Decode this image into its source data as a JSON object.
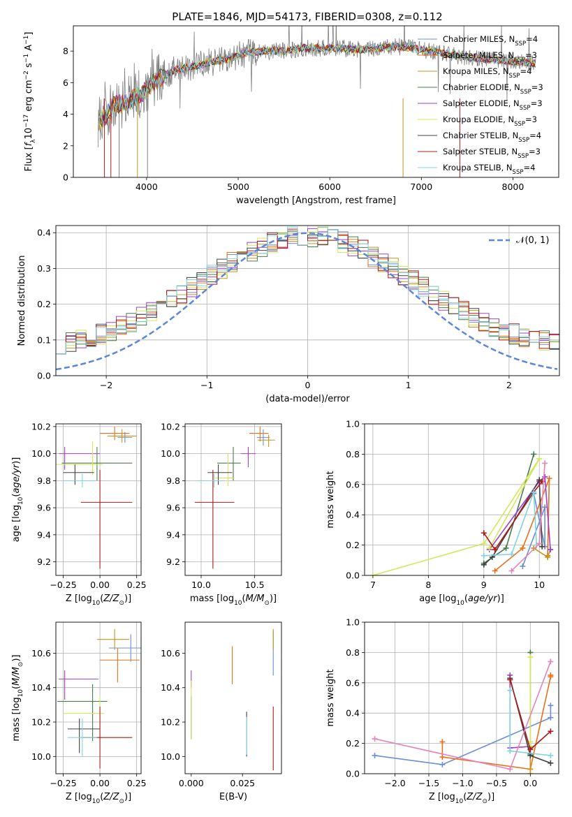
{
  "page_title": "PLATE=1846, MJD=54173, FIBERID=0308, z=0.112",
  "palette": {
    "chabrier_miles": "#6b8fd6",
    "salpeter_miles": "#e8701a",
    "kroupa_miles": "#c7941c",
    "chabrier_elodie": "#4a7a4e",
    "salpeter_elodie": "#a340c9",
    "kroupa_elodie": "#d3e85a",
    "chabrier_stelib": "#404040",
    "salpeter_stelib": "#b01818",
    "kroupa_stelib": "#7fd4e0",
    "data_gray": "#7f7f7f",
    "pink": "#e584b8",
    "normal_curve": "#5b86d9"
  },
  "chart_data": [
    {
      "id": "spectrum",
      "type": "line",
      "title": "PLATE=1846, MJD=54173, FIBERID=0308, z=0.112",
      "xlabel": "wavelength [Angstrom, rest frame]",
      "ylabel": "Flux [f_λ10^{-17} erg cm^{-2} s^{-1} A^{-1}]",
      "xlim": [
        3200,
        8500
      ],
      "ylim": [
        0,
        9.6
      ],
      "xticks": [
        "4000",
        "5000",
        "6000",
        "7000",
        "8000"
      ],
      "yticks": [
        "0",
        "2",
        "4",
        "6",
        "8"
      ],
      "legend_position": "upper right",
      "legend": [
        "Chabrier MILES, N_SSP=4",
        "Salpeter MILES, N_SSP=3",
        "Kroupa MILES, N_SSP=4",
        "Chabrier ELODIE, N_SSP=3",
        "Salpeter ELODIE, N_SSP=3",
        "Kroupa ELODIE, N_SSP=3",
        "Chabrier STELIB, N_SSP=4",
        "Salpeter STELIB, N_SSP=3",
        "Kroupa STELIB, N_SSP=4"
      ],
      "continuum": {
        "x": [
          3470,
          3550,
          3650,
          3750,
          3850,
          3950,
          4050,
          4150,
          4300,
          4500,
          4700,
          4900,
          5100,
          5300,
          5500,
          5700,
          5900,
          6100,
          6300,
          6500,
          6700,
          6900,
          7100,
          7300,
          7500,
          7700,
          7900,
          8100,
          8250
        ],
        "y": [
          3.5,
          3.9,
          4.6,
          4.7,
          5.0,
          5.3,
          5.9,
          6.3,
          6.8,
          7.0,
          7.3,
          7.5,
          7.9,
          8.0,
          8.0,
          8.2,
          8.2,
          8.2,
          8.1,
          8.2,
          8.3,
          8.2,
          8.0,
          7.8,
          7.6,
          7.5,
          7.4,
          7.3,
          7.2
        ]
      }
    },
    {
      "id": "residuals",
      "type": "histogram",
      "xlabel": "(data-model)/error",
      "ylabel": "Normed distribution",
      "xlim": [
        -2.5,
        2.5
      ],
      "ylim": [
        0,
        0.42
      ],
      "xticks": [
        "−2",
        "−1",
        "0",
        "1",
        "2"
      ],
      "yticks": [
        "0.0",
        "0.1",
        "0.2",
        "0.3",
        "0.4"
      ],
      "grid": true,
      "legend_position": "upper right",
      "normal_curve_label": "𝒩(0, 1)"
    },
    {
      "id": "age_vs_Z",
      "type": "errorbar",
      "xlabel": "Z [log10(Z/Z⊙)]",
      "ylabel": "age  [log10(age/yr)]",
      "xlim": [
        -0.3,
        0.28
      ],
      "ylim": [
        9.1,
        10.22
      ],
      "xticks": [
        "−0.25",
        "0.00",
        "0.25"
      ],
      "yticks": [
        "9.2",
        "9.4",
        "9.6",
        "9.8",
        "10.0",
        "10.2"
      ],
      "grid": true,
      "points": [
        {
          "x": 0.17,
          "y": 10.12,
          "xerr": [
            0.05,
            0.05
          ],
          "yerr": [
            0.04,
            0.04
          ]
        },
        {
          "x": 0.1,
          "y": 10.15,
          "xerr": [
            0.1,
            0.1
          ],
          "yerr": [
            0.05,
            0.05
          ]
        },
        {
          "x": 0.15,
          "y": 10.13,
          "xerr": [
            0.1,
            0.1
          ],
          "yerr": [
            0.05,
            0.05
          ]
        },
        {
          "x": -0.02,
          "y": 9.93,
          "xerr": [
            0.24,
            0.24
          ],
          "yerr": [
            0.13,
            0.12
          ]
        },
        {
          "x": -0.24,
          "y": 10.0,
          "xerr": [
            0.04,
            0.24
          ],
          "yerr": [
            0.12,
            0.05
          ]
        },
        {
          "x": -0.05,
          "y": 9.92,
          "xerr": [
            0.25,
            0.07
          ],
          "yerr": [
            0.08,
            0.17
          ]
        },
        {
          "x": -0.17,
          "y": 9.86,
          "xerr": [
            0.08,
            0.13
          ],
          "yerr": [
            0.09,
            0.06
          ]
        },
        {
          "x": 0.0,
          "y": 9.64,
          "xerr": [
            0.13,
            0.22
          ],
          "yerr": [
            0.49,
            0.24
          ]
        },
        {
          "x": -0.12,
          "y": 9.8,
          "xerr": [
            0.13,
            0.1
          ],
          "yerr": [
            0.05,
            0.05
          ]
        }
      ]
    },
    {
      "id": "age_vs_mass",
      "type": "errorbar",
      "xlabel": "mass [log10(M/M⊙)]",
      "xlim": [
        9.85,
        10.75
      ],
      "ylim": [
        9.1,
        10.22
      ],
      "xticks": [
        "10.0",
        "10.5"
      ],
      "yticks": [
        "9.2",
        "9.4",
        "9.6",
        "9.8",
        "10.0",
        "10.2"
      ],
      "grid": true,
      "points": [
        {
          "x": 10.58,
          "y": 10.12,
          "xerr": [
            0.06,
            0.06
          ],
          "yerr": [
            0.06,
            0.06
          ]
        },
        {
          "x": 10.55,
          "y": 10.15,
          "xerr": [
            0.1,
            0.08
          ],
          "yerr": [
            0.06,
            0.05
          ]
        },
        {
          "x": 10.63,
          "y": 10.1,
          "xerr": [
            0.1,
            0.06
          ],
          "yerr": [
            0.05,
            0.04
          ]
        },
        {
          "x": 10.3,
          "y": 9.93,
          "xerr": [
            0.15,
            0.07
          ],
          "yerr": [
            0.13,
            0.12
          ]
        },
        {
          "x": 10.44,
          "y": 10.0,
          "xerr": [
            0.07,
            0.07
          ],
          "yerr": [
            0.1,
            0.05
          ]
        },
        {
          "x": 10.25,
          "y": 9.82,
          "xerr": [
            0.12,
            0.06
          ],
          "yerr": [
            0.06,
            0.18
          ]
        },
        {
          "x": 10.16,
          "y": 9.86,
          "xerr": [
            0.1,
            0.13
          ],
          "yerr": [
            0.09,
            0.06
          ]
        },
        {
          "x": 10.11,
          "y": 9.64,
          "xerr": [
            0.17,
            0.2
          ],
          "yerr": [
            0.49,
            0.24
          ]
        },
        {
          "x": 10.12,
          "y": 9.8,
          "xerr": [
            0.15,
            0.1
          ],
          "yerr": [
            0.05,
            0.05
          ]
        }
      ]
    },
    {
      "id": "weight_vs_age",
      "type": "line",
      "xlabel": "age  [log10(age/yr)]",
      "ylabel": "mass weight",
      "xlim": [
        6.85,
        10.35
      ],
      "ylim": [
        0,
        1.0
      ],
      "xticks": [
        "7",
        "8",
        "9",
        "10"
      ],
      "yticks": [
        "0.0",
        "0.2",
        "0.4",
        "0.6",
        "0.8",
        "1.0"
      ],
      "grid": true,
      "series": [
        {
          "x": [
            9.7,
            10.1,
            10.1,
            9.9
          ],
          "y": [
            0.06,
            0.45,
            0.19,
            0.54
          ]
        },
        {
          "x": [
            9.2,
            9.7,
            10.18,
            10.15
          ],
          "y": [
            0.03,
            0.18,
            0.64,
            0.13
          ]
        },
        {
          "x": [
            9.9,
            10.15,
            10.2
          ],
          "y": [
            0.18,
            0.12,
            0.17
          ]
        },
        {
          "x": [
            9.0,
            9.4,
            9.9
          ],
          "y": [
            0.08,
            0.18,
            0.8
          ]
        },
        {
          "x": [
            9.1,
            10.0,
            10.1,
            10.2
          ],
          "y": [
            0.17,
            0.62,
            0.65,
            0.17
          ]
        },
        {
          "x": [
            7.0,
            9.0,
            10.0,
            9.1
          ],
          "y": [
            0.0,
            0.21,
            0.77,
            0.18
          ]
        },
        {
          "x": [
            9.0,
            9.15,
            10.0,
            10.05
          ],
          "y": [
            0.07,
            0.12,
            0.63,
            0.19
          ]
        },
        {
          "x": [
            9.0,
            9.2,
            9.9,
            10.05
          ],
          "y": [
            0.28,
            0.17,
            0.55,
            0.62
          ]
        },
        {
          "x": [
            9.0,
            9.5,
            9.9,
            9.95
          ],
          "y": [
            0.13,
            0.14,
            0.55,
            0.2
          ]
        },
        {
          "x": [
            9.5,
            10.0,
            10.1
          ],
          "y": [
            0.03,
            0.21,
            0.74
          ]
        }
      ]
    },
    {
      "id": "mass_vs_Z",
      "type": "errorbar",
      "xlabel": "Z [log10(Z/Z⊙)]",
      "ylabel": "mass [log10(M/M⊙)]",
      "xlim": [
        -0.3,
        0.28
      ],
      "ylim": [
        9.9,
        10.78
      ],
      "xticks": [
        "−0.25",
        "0.00",
        "0.25"
      ],
      "yticks": [
        "10.0",
        "10.2",
        "10.4",
        "10.6"
      ],
      "grid": true,
      "points": [
        {
          "x": 0.21,
          "y": 10.63,
          "xerr": [
            0.15,
            0.08
          ],
          "yerr": [
            0.08,
            0.08
          ]
        },
        {
          "x": 0.12,
          "y": 10.56,
          "xerr": [
            0.12,
            0.15
          ],
          "yerr": [
            0.13,
            0.07
          ]
        },
        {
          "x": 0.1,
          "y": 10.68,
          "xerr": [
            0.12,
            0.1
          ],
          "yerr": [
            0.06,
            0.06
          ]
        },
        {
          "x": -0.05,
          "y": 10.32,
          "xerr": [
            0.24,
            0.1
          ],
          "yerr": [
            0.23,
            0.1
          ]
        },
        {
          "x": -0.24,
          "y": 10.45,
          "xerr": [
            0.04,
            0.23
          ],
          "yerr": [
            0.12,
            0.05
          ]
        },
        {
          "x": 0.0,
          "y": 10.25,
          "xerr": [
            0.25,
            0.03
          ],
          "yerr": [
            0.14,
            0.1
          ]
        },
        {
          "x": -0.14,
          "y": 10.16,
          "xerr": [
            0.08,
            0.14
          ],
          "yerr": [
            0.14,
            0.06
          ]
        },
        {
          "x": 0.0,
          "y": 10.11,
          "xerr": [
            0.13,
            0.22
          ],
          "yerr": [
            0.18,
            0.18
          ]
        },
        {
          "x": -0.12,
          "y": 10.11,
          "xerr": [
            0.1,
            0.1
          ],
          "yerr": [
            0.11,
            0.11
          ]
        }
      ]
    },
    {
      "id": "mass_vs_ebv",
      "type": "errorbar",
      "xlabel": "E(B-V)",
      "xlim": [
        -0.003,
        0.044
      ],
      "ylim": [
        9.9,
        10.78
      ],
      "xticks": [
        "0.000",
        "0.025"
      ],
      "yticks": [
        "10.0",
        "10.2",
        "10.4",
        "10.6"
      ],
      "points": [
        {
          "x": 0.04,
          "y": 10.63,
          "yerr": [
            0.16,
            0.1
          ]
        },
        {
          "x": 0.02,
          "y": 10.52,
          "yerr": [
            0.1,
            0.12
          ]
        },
        {
          "x": 0.04,
          "y": 10.68,
          "yerr": [
            0.06,
            0.06
          ]
        },
        {
          "x": 0.0,
          "y": 10.27,
          "yerr": [
            0.17,
            0.08
          ]
        },
        {
          "x": 0.0,
          "y": 10.45,
          "yerr": [
            0.05,
            0.05
          ]
        },
        {
          "x": 0.0,
          "y": 10.3,
          "yerr": [
            0.2,
            0.14
          ]
        },
        {
          "x": 0.027,
          "y": 10.1,
          "yerr": [
            0.1,
            0.16
          ]
        },
        {
          "x": 0.04,
          "y": 10.11,
          "yerr": [
            0.19,
            0.18
          ]
        },
        {
          "x": 0.027,
          "y": 10.11,
          "yerr": [
            0.1,
            0.12
          ]
        }
      ]
    },
    {
      "id": "weight_vs_Z",
      "type": "line",
      "xlabel": "Z [log10(Z/Z⊙)]",
      "ylabel": "mass weight",
      "xlim": [
        -2.45,
        0.42
      ],
      "ylim": [
        0,
        1.0
      ],
      "xticks": [
        "−2.0",
        "−1.5",
        "−1.0",
        "−0.5",
        "0.0"
      ],
      "yticks": [
        "0.0",
        "0.2",
        "0.4",
        "0.6",
        "0.8",
        "1.0"
      ],
      "grid": true,
      "series": [
        {
          "x": [
            -2.3,
            -1.3,
            0.3,
            0.3
          ],
          "y": [
            0.12,
            0.06,
            0.37,
            0.45
          ]
        },
        {
          "x": [
            -1.3,
            -1.3,
            0.0,
            0.3,
            0.3
          ],
          "y": [
            0.21,
            0.11,
            0.03,
            0.64,
            0.65
          ]
        },
        {
          "x": [
            0.0,
            0.0,
            0.0
          ],
          "y": [
            0.03,
            0.0,
            0.18
          ]
        },
        {
          "x": [
            0.0,
            0.0,
            0.0
          ],
          "y": [
            0.8,
            0.17,
            0.13
          ]
        },
        {
          "x": [
            -0.3,
            -0.3,
            0.0
          ],
          "y": [
            0.65,
            0.17,
            0.18
          ]
        },
        {
          "x": [
            0.0,
            0.0,
            0.0
          ],
          "y": [
            0.77,
            0.18,
            0.21
          ]
        },
        {
          "x": [
            -0.3,
            0.0,
            0.3
          ],
          "y": [
            0.63,
            0.12,
            0.07
          ]
        },
        {
          "x": [
            -0.3,
            0.0,
            0.3
          ],
          "y": [
            0.62,
            0.16,
            0.28
          ]
        },
        {
          "x": [
            -0.3,
            -0.3,
            0.3
          ],
          "y": [
            0.55,
            0.15,
            0.12
          ]
        },
        {
          "x": [
            -2.3,
            -0.3,
            0.3
          ],
          "y": [
            0.23,
            0.03,
            0.74
          ]
        }
      ]
    }
  ]
}
